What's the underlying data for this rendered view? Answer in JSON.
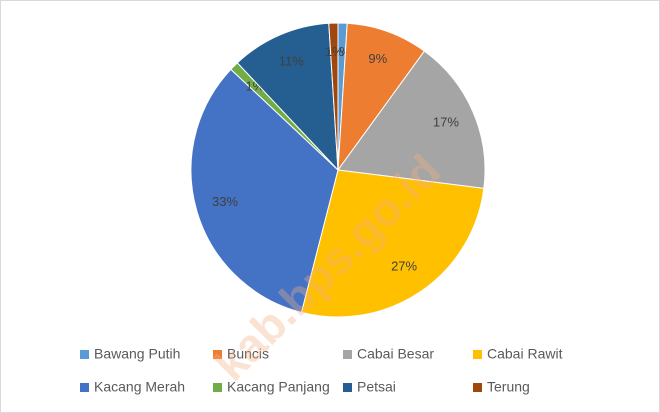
{
  "chart_data": {
    "type": "pie",
    "categories": [
      "Bawang Putih",
      "Buncis",
      "Cabai Besar",
      "Cabai Rawit",
      "Kacang Merah",
      "Kacang Panjang",
      "Petsai",
      "Terung"
    ],
    "values": [
      1,
      9,
      17,
      27,
      33,
      1,
      11,
      1
    ],
    "value_labels": [
      "1%",
      "9%",
      "17%",
      "27%",
      "33%",
      "1%",
      "11%",
      "1%"
    ],
    "colors": [
      "#5b9bd5",
      "#ed7d31",
      "#a5a5a5",
      "#ffc000",
      "#4472c4",
      "#70ad47",
      "#255e91",
      "#9e480e"
    ],
    "legend": "bottom",
    "watermark": "kab.bps.go.id"
  }
}
